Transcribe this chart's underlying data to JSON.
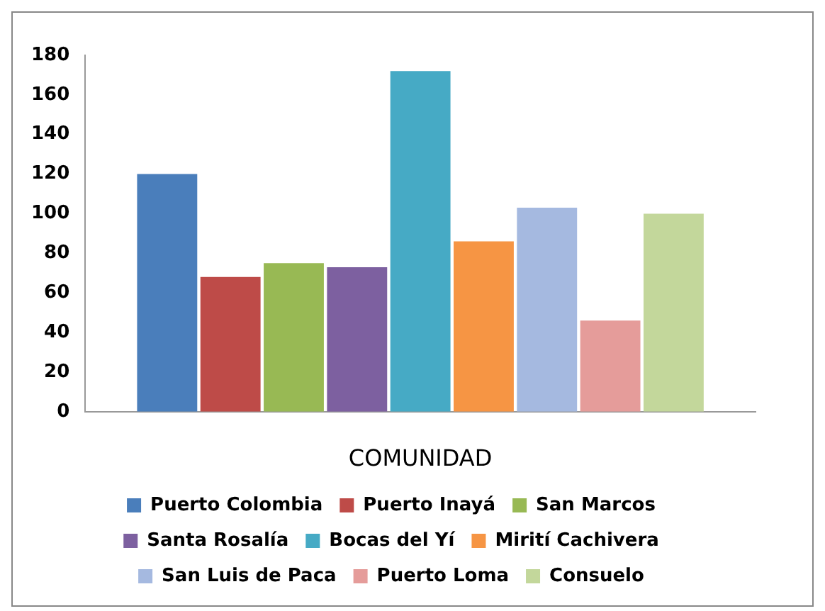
{
  "chart_data": {
    "type": "bar",
    "xlabel": "COMUNIDAD",
    "categories": [
      null
    ],
    "series": [
      {
        "name": "Puerto Colombia",
        "color": "#4a7ebb",
        "values": [
          120
        ]
      },
      {
        "name": "Puerto Inayá",
        "color": "#be4b48",
        "values": [
          68
        ]
      },
      {
        "name": "San Marcos",
        "color": "#98b954",
        "values": [
          75
        ]
      },
      {
        "name": "Santa Rosalía",
        "color": "#7d60a0",
        "values": [
          73
        ]
      },
      {
        "name": "Bocas del Yí",
        "color": "#46aac5",
        "values": [
          172
        ]
      },
      {
        "name": "Mirití Cachivera",
        "color": "#f69544",
        "values": [
          86
        ]
      },
      {
        "name": "San Luis de Paca",
        "color": "#a5b9e0",
        "values": [
          103
        ]
      },
      {
        "name": "Puerto Loma",
        "color": "#e59c9a",
        "values": [
          46
        ]
      },
      {
        "name": "Consuelo",
        "color": "#c3d79b",
        "values": [
          100
        ]
      }
    ],
    "ylim": [
      0,
      180
    ],
    "yticks": [
      0,
      20,
      40,
      60,
      80,
      100,
      120,
      140,
      160,
      180
    ],
    "grid": false,
    "legend": "bottom"
  }
}
